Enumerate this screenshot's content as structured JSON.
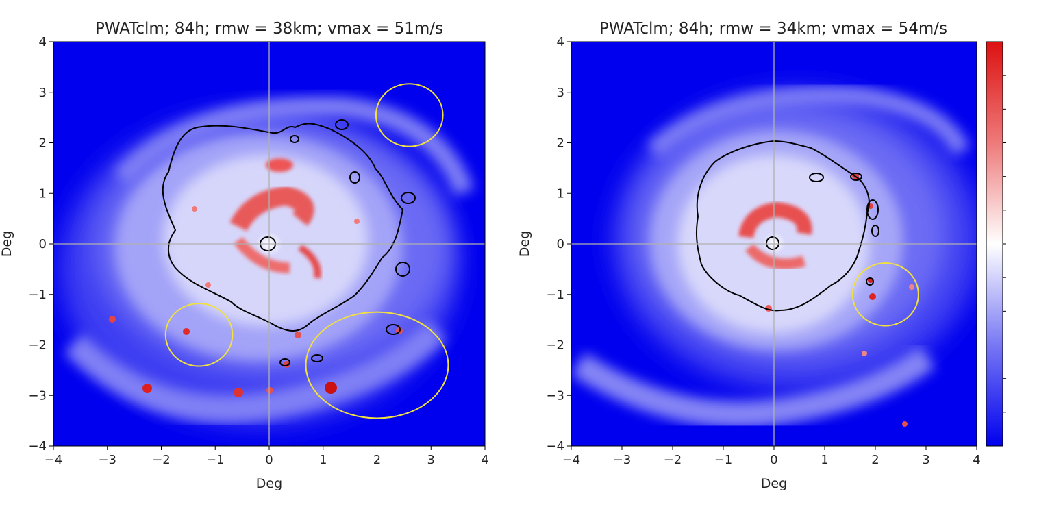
{
  "chart_data": [
    {
      "type": "heatmap",
      "title": "PWATclm; 84h; rmw = 38km; vmax = 51m/s",
      "xlabel": "Deg",
      "ylabel": "Deg",
      "xlim": [
        -4,
        4
      ],
      "ylim": [
        -4,
        4
      ],
      "xticks": [
        "−4",
        "−3",
        "−2",
        "−1",
        "0",
        "1",
        "2",
        "3",
        "4"
      ],
      "yticks": [
        "4",
        "3",
        "2",
        "1",
        "0",
        "−1",
        "−2",
        "−3",
        "−4"
      ],
      "crosshair": [
        0,
        0
      ],
      "colormap": "bwr",
      "highlight_ellipses": [
        {
          "cx": 2.6,
          "cy": 2.55,
          "rx": 0.62,
          "ry": 0.62
        },
        {
          "cx": -1.3,
          "cy": -1.8,
          "rx": 0.62,
          "ry": 0.62
        },
        {
          "cx": 2.0,
          "cy": -2.4,
          "rx": 1.32,
          "ry": 1.05
        }
      ]
    },
    {
      "type": "heatmap",
      "title": "PWATclm; 84h; rmw = 34km; vmax = 54m/s",
      "xlabel": "Deg",
      "ylabel": "Deg",
      "xlim": [
        -4,
        4
      ],
      "ylim": [
        -4,
        4
      ],
      "xticks": [
        "−4",
        "−3",
        "−2",
        "−1",
        "0",
        "1",
        "2",
        "3",
        "4"
      ],
      "yticks": [
        "4",
        "3",
        "2",
        "1",
        "0",
        "−1",
        "−2",
        "−3",
        "−4"
      ],
      "crosshair": [
        0,
        0
      ],
      "colormap": "bwr",
      "highlight_ellipses": [
        {
          "cx": 2.2,
          "cy": -1.0,
          "rx": 0.65,
          "ry": 0.62
        }
      ]
    }
  ],
  "colors": {
    "field_low": "#0000ee",
    "field_mid": "#ffffff",
    "field_high": "#dd1111",
    "contour": "#000000",
    "highlight": "#f0e040",
    "crosshair": "#b0b0b0"
  }
}
